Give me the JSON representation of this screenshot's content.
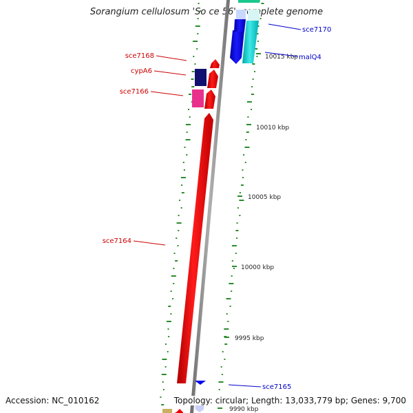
{
  "title": "Sorangium cellulosum 'So ce 56', complete genome",
  "footer": {
    "accession": "Accession: NC_010162",
    "topology": "Topology: circular; Length: 13,033,779 bp; Genes: 9,700"
  },
  "ticks": [
    "9990 kbp",
    "9995 kbp",
    "10000 kbp",
    "10005 kbp",
    "10010 kbp",
    "10015 kbp"
  ],
  "genes": [
    {
      "label": "sce7170",
      "color": "#0000cc"
    },
    {
      "label": "malQ4",
      "color": "#0000cc"
    },
    {
      "label": "sce7168",
      "color": "#cc0000"
    },
    {
      "label": "cypA6",
      "color": "#cc0000"
    },
    {
      "label": "sce7166",
      "color": "#cc0000"
    },
    {
      "label": "sce7164",
      "color": "#cc0000"
    },
    {
      "label": "sce7165",
      "color": "#0000cc"
    }
  ],
  "colors": {
    "backbone": "#8c8c8c",
    "forward_gene": "#ee0000",
    "reverse_gene": "#0000ee",
    "gc_marks": "#2a8a2a"
  }
}
